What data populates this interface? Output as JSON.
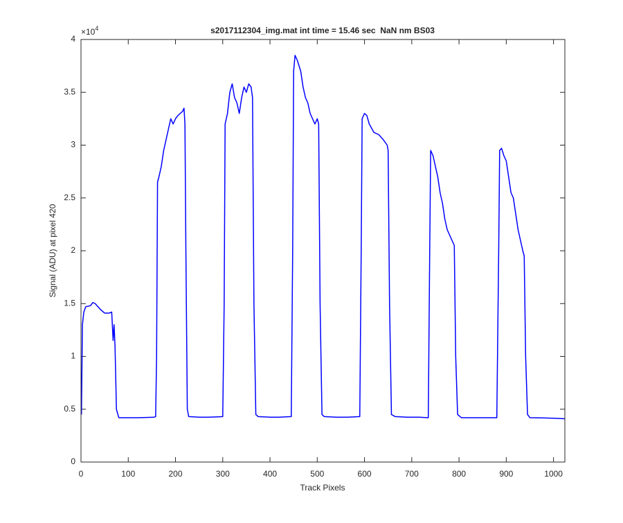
{
  "chart_data": {
    "type": "line",
    "title": "s2017112304_img.mat int time = 15.46 sec  NaN nm BS03",
    "x_label": "Track Pixels",
    "y_label": "Signal (ADU) at pixel 420",
    "y_multiplier": {
      "base": "×10",
      "exponent": "4"
    },
    "x": [
      1,
      3,
      6,
      10,
      20,
      25,
      30,
      40,
      50,
      60,
      65,
      68,
      70,
      72,
      75,
      80,
      100,
      120,
      140,
      155,
      158,
      160,
      162,
      165,
      170,
      175,
      180,
      185,
      190,
      195,
      200,
      205,
      210,
      215,
      218,
      220,
      222,
      225,
      228,
      250,
      270,
      290,
      300,
      303,
      305,
      310,
      315,
      320,
      325,
      330,
      335,
      340,
      345,
      350,
      355,
      360,
      363,
      366,
      370,
      375,
      400,
      420,
      445,
      448,
      450,
      453,
      458,
      465,
      470,
      475,
      480,
      485,
      490,
      495,
      500,
      503,
      506,
      510,
      515,
      540,
      565,
      590,
      593,
      595,
      600,
      605,
      610,
      620,
      630,
      640,
      648,
      650,
      653,
      657,
      665,
      690,
      715,
      735,
      738,
      740,
      745,
      750,
      755,
      760,
      765,
      770,
      775,
      780,
      785,
      790,
      793,
      797,
      805,
      830,
      855,
      880,
      884,
      886,
      890,
      895,
      900,
      905,
      910,
      915,
      920,
      925,
      930,
      935,
      938,
      941,
      945,
      950,
      975,
      1000,
      1024
    ],
    "series": [
      {
        "color": "#0000ff",
        "values": [
          0.45,
          1.3,
          1.42,
          1.47,
          1.48,
          1.51,
          1.5,
          1.45,
          1.41,
          1.41,
          1.42,
          1.15,
          1.3,
          1.1,
          0.5,
          0.42,
          0.42,
          0.42,
          0.422,
          0.425,
          0.43,
          1.0,
          2.65,
          2.7,
          2.8,
          2.95,
          3.05,
          3.15,
          3.25,
          3.2,
          3.25,
          3.28,
          3.3,
          3.32,
          3.35,
          3.2,
          2.0,
          0.5,
          0.43,
          0.425,
          0.425,
          0.428,
          0.43,
          1.5,
          3.2,
          3.3,
          3.5,
          3.58,
          3.45,
          3.4,
          3.3,
          3.45,
          3.55,
          3.5,
          3.58,
          3.55,
          3.45,
          1.5,
          0.45,
          0.43,
          0.425,
          0.425,
          0.43,
          2.0,
          3.7,
          3.85,
          3.8,
          3.7,
          3.55,
          3.45,
          3.4,
          3.3,
          3.25,
          3.2,
          3.25,
          3.2,
          1.5,
          0.45,
          0.43,
          0.425,
          0.425,
          0.43,
          2.0,
          3.25,
          3.3,
          3.28,
          3.2,
          3.12,
          3.1,
          3.05,
          3.0,
          2.95,
          1.5,
          0.45,
          0.43,
          0.425,
          0.425,
          0.42,
          2.0,
          2.95,
          2.9,
          2.8,
          2.7,
          2.55,
          2.45,
          2.3,
          2.2,
          2.15,
          2.1,
          2.05,
          1.0,
          0.45,
          0.42,
          0.42,
          0.42,
          0.42,
          2.0,
          2.95,
          2.97,
          2.9,
          2.85,
          2.7,
          2.55,
          2.5,
          2.35,
          2.2,
          2.1,
          2.0,
          1.95,
          1.0,
          0.45,
          0.42,
          0.418,
          0.415,
          0.41
        ]
      }
    ],
    "xlim": [
      0,
      1024
    ],
    "xticks": [
      0,
      100,
      200,
      300,
      400,
      500,
      600,
      700,
      800,
      900,
      1000
    ],
    "ylim": [
      0,
      4
    ],
    "yticks": [
      0,
      0.5,
      1,
      1.5,
      2,
      2.5,
      3,
      3.5,
      4
    ]
  }
}
